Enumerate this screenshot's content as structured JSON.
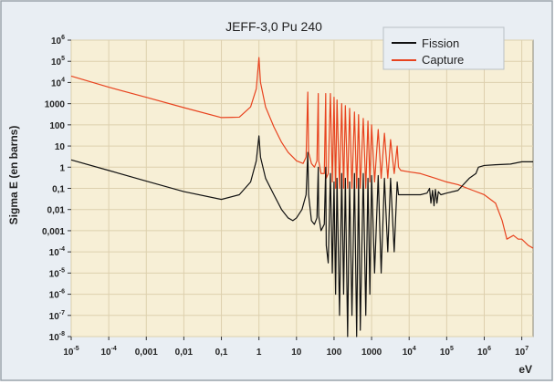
{
  "chart_data": {
    "type": "line",
    "title": "JEFF-3,0 Pu 240",
    "xlabel": "eV",
    "ylabel": "Sigma E (en barns)",
    "xscale": "log",
    "yscale": "log",
    "xlim": [
      1e-05,
      20000000.0
    ],
    "ylim": [
      1e-08,
      1000000.0
    ],
    "grid": true,
    "legend_position": "top-right",
    "x_ticks": [
      {
        "value": 1e-05,
        "mant": "10",
        "exp": "-5"
      },
      {
        "value": 0.0001,
        "mant": "10",
        "exp": "-4"
      },
      {
        "value": 0.001,
        "mant": "0,001",
        "exp": ""
      },
      {
        "value": 0.01,
        "mant": "0,01",
        "exp": ""
      },
      {
        "value": 0.1,
        "mant": "0,1",
        "exp": ""
      },
      {
        "value": 1,
        "mant": "1",
        "exp": ""
      },
      {
        "value": 10,
        "mant": "10",
        "exp": ""
      },
      {
        "value": 100,
        "mant": "100",
        "exp": ""
      },
      {
        "value": 1000,
        "mant": "1000",
        "exp": ""
      },
      {
        "value": 10000.0,
        "mant": "10",
        "exp": "4"
      },
      {
        "value": 100000.0,
        "mant": "10",
        "exp": "5"
      },
      {
        "value": 1000000.0,
        "mant": "10",
        "exp": "6"
      },
      {
        "value": 10000000.0,
        "mant": "10",
        "exp": "7"
      }
    ],
    "y_ticks": [
      {
        "value": 1000000.0,
        "mant": "10",
        "exp": "6"
      },
      {
        "value": 100000.0,
        "mant": "10",
        "exp": "5"
      },
      {
        "value": 10000.0,
        "mant": "10",
        "exp": "4"
      },
      {
        "value": 1000,
        "mant": "1000",
        "exp": ""
      },
      {
        "value": 100,
        "mant": "100",
        "exp": ""
      },
      {
        "value": 10,
        "mant": "10",
        "exp": ""
      },
      {
        "value": 1,
        "mant": "1",
        "exp": ""
      },
      {
        "value": 0.1,
        "mant": "0,1",
        "exp": ""
      },
      {
        "value": 0.01,
        "mant": "0,01",
        "exp": ""
      },
      {
        "value": 0.001,
        "mant": "0,001",
        "exp": ""
      },
      {
        "value": 0.0001,
        "mant": "10",
        "exp": "-4"
      },
      {
        "value": 1e-05,
        "mant": "10",
        "exp": "-5"
      },
      {
        "value": 1e-06,
        "mant": "10",
        "exp": "-6"
      },
      {
        "value": 1e-07,
        "mant": "10",
        "exp": "-7"
      },
      {
        "value": 1e-08,
        "mant": "10",
        "exp": "-8"
      }
    ],
    "colors": {
      "plot_background": "#f7efd6",
      "grid": "#ddd0ae",
      "frame_background": "#e9eef3",
      "frame_border": "#9aa3ab",
      "fission": "#111111",
      "capture": "#e8431f"
    },
    "series": [
      {
        "name": "Fission",
        "color": "#111111",
        "points": [
          [
            1e-05,
            2.2
          ],
          [
            0.0001,
            0.7
          ],
          [
            0.001,
            0.22
          ],
          [
            0.01,
            0.07
          ],
          [
            0.1,
            0.03
          ],
          [
            0.3,
            0.05
          ],
          [
            0.6,
            0.2
          ],
          [
            0.85,
            2
          ],
          [
            1.0,
            30
          ],
          [
            1.1,
            3
          ],
          [
            1.5,
            0.3
          ],
          [
            2.5,
            0.05
          ],
          [
            4,
            0.01
          ],
          [
            6,
            0.004
          ],
          [
            8,
            0.003
          ],
          [
            10,
            0.004
          ],
          [
            14,
            0.01
          ],
          [
            18,
            0.05
          ],
          [
            20,
            5
          ],
          [
            21,
            0.05
          ],
          [
            25,
            0.003
          ],
          [
            30,
            0.002
          ],
          [
            35,
            0.004
          ],
          [
            38,
            1
          ],
          [
            39,
            0.005
          ],
          [
            45,
            0.001
          ],
          [
            55,
            0.002
          ],
          [
            60,
            1
          ],
          [
            62,
            0.0002
          ],
          [
            70,
            3e-05
          ],
          [
            80,
            0.5
          ],
          [
            90,
            1e-05
          ],
          [
            100,
            0.2
          ],
          [
            110,
            1e-06
          ],
          [
            120,
            0.3
          ],
          [
            140,
            1e-07
          ],
          [
            160,
            0.5
          ],
          [
            180,
            1e-06
          ],
          [
            200,
            0.3
          ],
          [
            230,
            1e-08
          ],
          [
            260,
            0.2
          ],
          [
            300,
            1e-07
          ],
          [
            350,
            0.5
          ],
          [
            400,
            1e-08
          ],
          [
            450,
            0.3
          ],
          [
            500,
            2e-08
          ],
          [
            600,
            0.5
          ],
          [
            700,
            1e-07
          ],
          [
            800,
            0.3
          ],
          [
            900,
            1e-06
          ],
          [
            1000,
            0.4
          ],
          [
            1200,
            1e-05
          ],
          [
            1500,
            0.4
          ],
          [
            1800,
            1e-05
          ],
          [
            2200,
            0.3
          ],
          [
            2700,
            0.0001
          ],
          [
            3200,
            0.3
          ],
          [
            4000,
            0.0001
          ],
          [
            4800,
            0.2
          ],
          [
            5200,
            0.05
          ],
          [
            6000,
            0.05
          ],
          [
            10000,
            0.05
          ],
          [
            20000,
            0.05
          ],
          [
            30000,
            0.06
          ],
          [
            35000,
            0.1
          ],
          [
            38000,
            0.02
          ],
          [
            42000,
            0.08
          ],
          [
            46000,
            0.015
          ],
          [
            50000,
            0.09
          ],
          [
            55000,
            0.02
          ],
          [
            60000,
            0.07
          ],
          [
            70000,
            0.05
          ],
          [
            100000,
            0.06
          ],
          [
            200000,
            0.08
          ],
          [
            400000,
            0.3
          ],
          [
            600000,
            0.5
          ],
          [
            700000,
            1
          ],
          [
            1000000,
            1.2
          ],
          [
            2000000,
            1.3
          ],
          [
            5000000,
            1.4
          ],
          [
            10000000,
            1.8
          ],
          [
            20000000,
            1.8
          ]
        ]
      },
      {
        "name": "Capture",
        "color": "#e8431f",
        "points": [
          [
            1e-05,
            20000
          ],
          [
            0.0001,
            6000
          ],
          [
            0.001,
            2000
          ],
          [
            0.01,
            650
          ],
          [
            0.1,
            220
          ],
          [
            0.3,
            230
          ],
          [
            0.6,
            700
          ],
          [
            0.85,
            5000
          ],
          [
            1.0,
            150000
          ],
          [
            1.1,
            10000
          ],
          [
            1.5,
            700
          ],
          [
            2.5,
            80
          ],
          [
            4,
            15
          ],
          [
            6,
            5
          ],
          [
            8,
            3
          ],
          [
            10,
            2
          ],
          [
            15,
            1.5
          ],
          [
            18,
            3
          ],
          [
            20,
            3500
          ],
          [
            21,
            5
          ],
          [
            25,
            1.5
          ],
          [
            30,
            1
          ],
          [
            35,
            2
          ],
          [
            38,
            3000
          ],
          [
            39,
            2
          ],
          [
            45,
            0.5
          ],
          [
            55,
            0.5
          ],
          [
            60,
            3000
          ],
          [
            62,
            0.3
          ],
          [
            70,
            0.5
          ],
          [
            80,
            3000
          ],
          [
            90,
            0.2
          ],
          [
            100,
            2000
          ],
          [
            110,
            0.1
          ],
          [
            120,
            1500
          ],
          [
            140,
            0.1
          ],
          [
            160,
            1000
          ],
          [
            180,
            0.1
          ],
          [
            200,
            800
          ],
          [
            230,
            0.1
          ],
          [
            260,
            600
          ],
          [
            300,
            0.1
          ],
          [
            350,
            400
          ],
          [
            400,
            0.1
          ],
          [
            450,
            300
          ],
          [
            500,
            0.1
          ],
          [
            600,
            200
          ],
          [
            700,
            0.1
          ],
          [
            800,
            150
          ],
          [
            900,
            0.2
          ],
          [
            1000,
            100
          ],
          [
            1200,
            0.2
          ],
          [
            1500,
            60
          ],
          [
            1800,
            0.3
          ],
          [
            2200,
            40
          ],
          [
            2700,
            0.3
          ],
          [
            3200,
            20
          ],
          [
            4000,
            0.5
          ],
          [
            4800,
            10
          ],
          [
            5200,
            1
          ],
          [
            6000,
            0.7
          ],
          [
            10000,
            0.6
          ],
          [
            20000,
            0.5
          ],
          [
            50000,
            0.3
          ],
          [
            100000,
            0.2
          ],
          [
            200000,
            0.15
          ],
          [
            500000,
            0.08
          ],
          [
            1000000,
            0.05
          ],
          [
            2000000,
            0.02
          ],
          [
            3000000,
            0.003
          ],
          [
            4000000,
            0.0004
          ],
          [
            6000000,
            0.0006
          ],
          [
            8000000,
            0.0004
          ],
          [
            10000000,
            0.0004
          ],
          [
            15000000,
            0.0002
          ],
          [
            20000000,
            0.00015
          ]
        ]
      }
    ]
  }
}
